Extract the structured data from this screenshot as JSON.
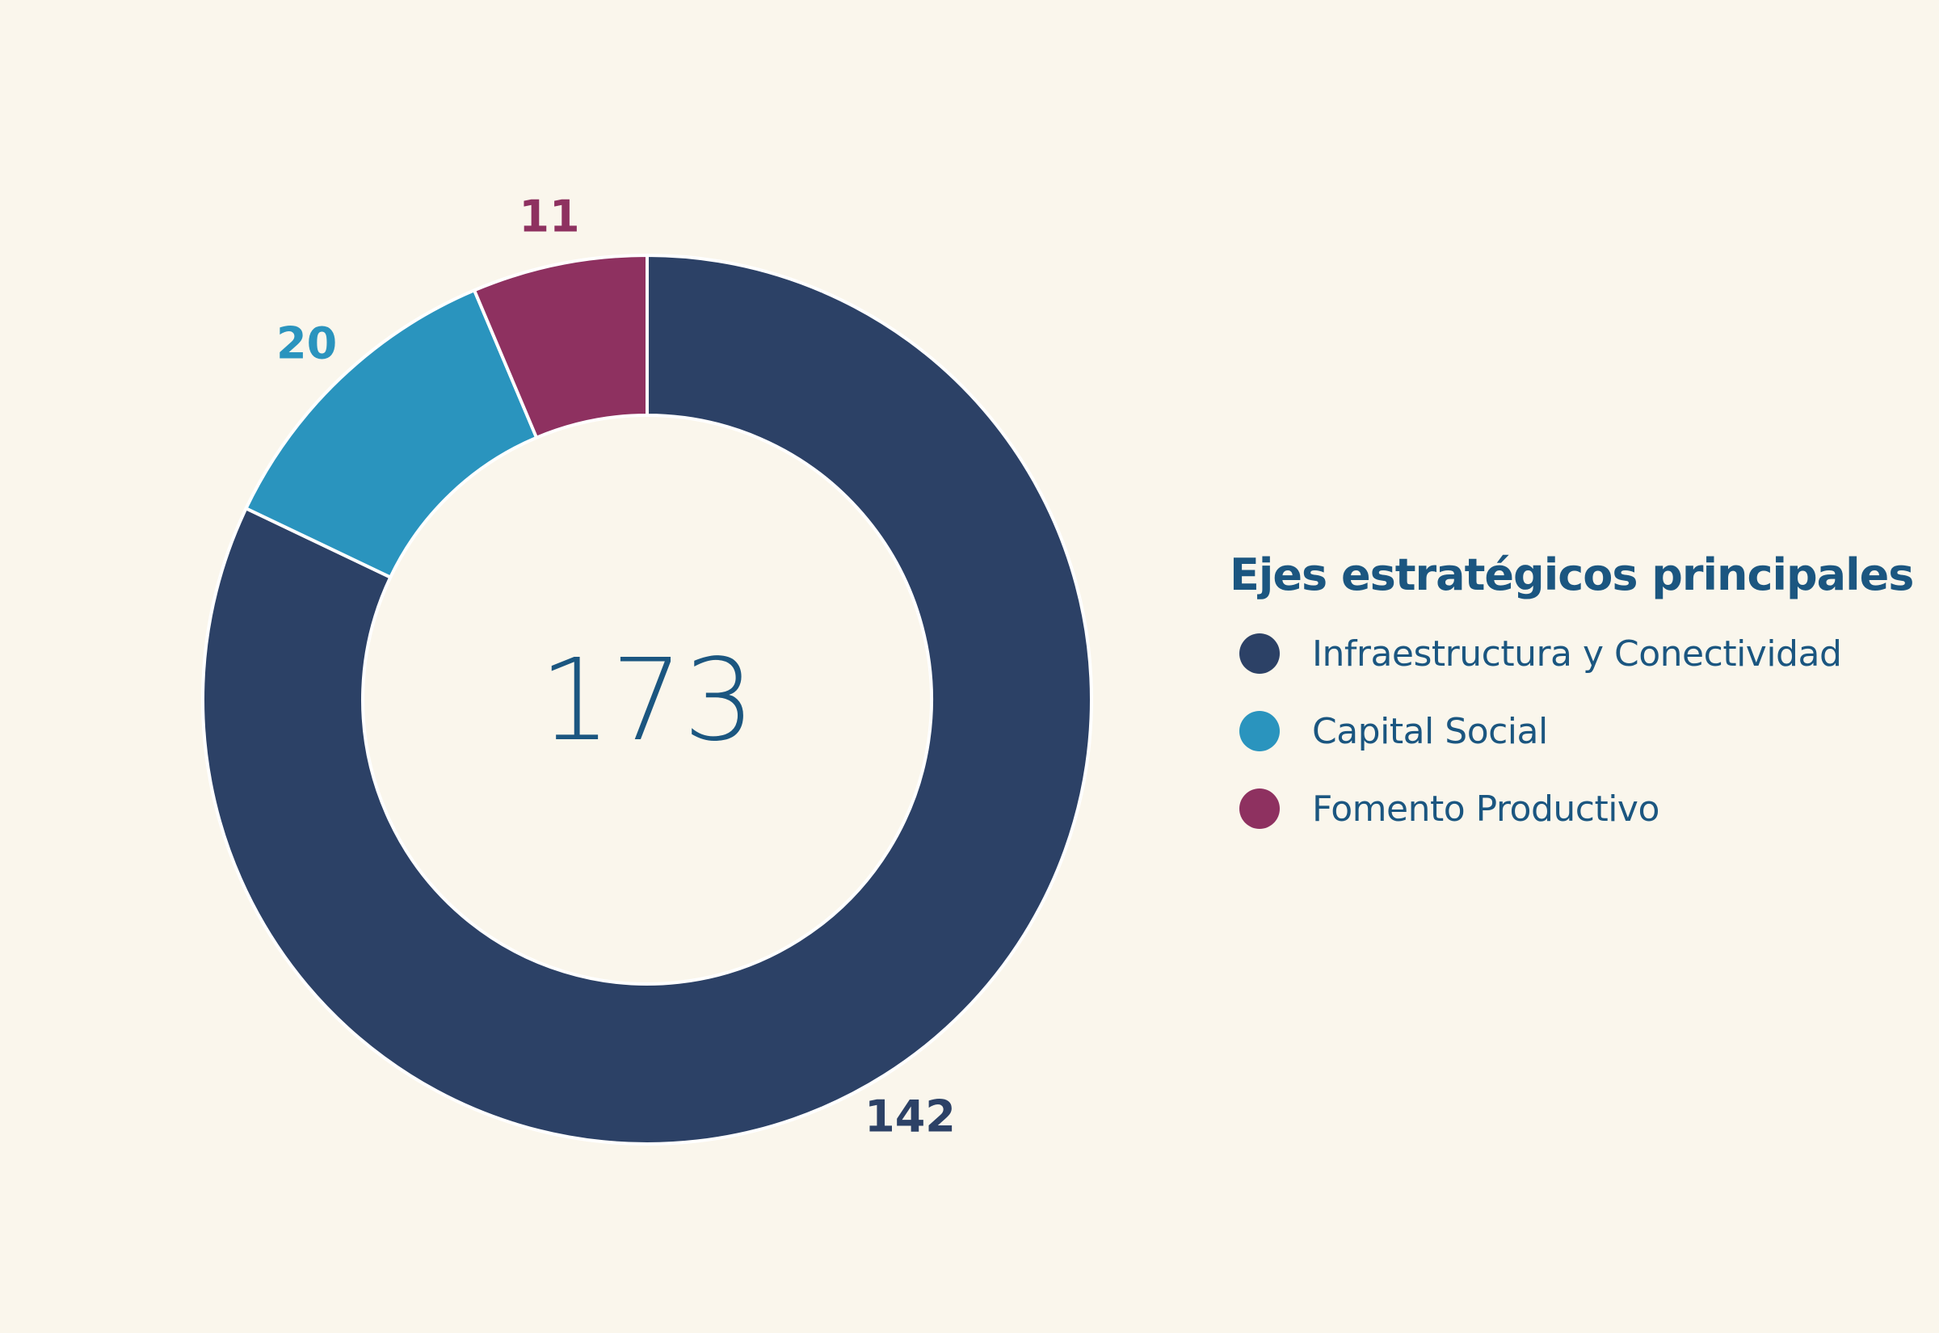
{
  "chart_data": {
    "type": "pie",
    "donut": true,
    "categories": [
      "Infraestructura y Conectividad",
      "Capital Social",
      "Fomento Productivo"
    ],
    "values": [
      142,
      20,
      11
    ],
    "colors": [
      "#2C4166",
      "#2A94BE",
      "#8E3160"
    ],
    "center_label": "173",
    "legend_title": "Ejes estratégicos principales",
    "legend_placement": "right"
  }
}
